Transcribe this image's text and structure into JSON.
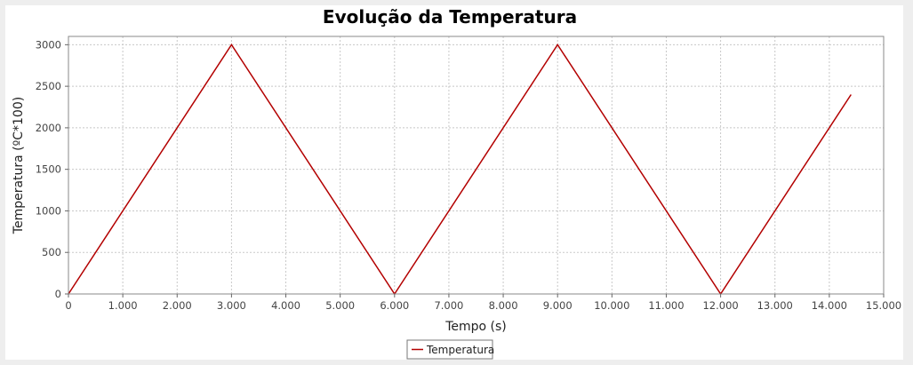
{
  "chart_data": {
    "type": "line",
    "title": "Evolução da Temperatura",
    "xlabel": "Tempo (s)",
    "ylabel": "Temperatura (ºC*100)",
    "xlim": [
      0,
      15000
    ],
    "ylim": [
      0,
      3100
    ],
    "x_ticks": [
      0,
      1000,
      2000,
      3000,
      4000,
      5000,
      6000,
      7000,
      8000,
      9000,
      10000,
      11000,
      12000,
      13000,
      14000,
      15000
    ],
    "x_tick_labels": [
      "0",
      "1.000",
      "2.000",
      "3.000",
      "4.000",
      "5.000",
      "6.000",
      "7.000",
      "8.000",
      "9.000",
      "10.000",
      "11.000",
      "12.000",
      "13.000",
      "14.000",
      "15.000"
    ],
    "y_ticks": [
      0,
      500,
      1000,
      1500,
      2000,
      2500,
      3000
    ],
    "y_tick_labels": [
      "0",
      "500",
      "1000",
      "1500",
      "2000",
      "2500",
      "3000"
    ],
    "grid": true,
    "legend_position": "bottom-center",
    "series": [
      {
        "name": "Temperatura",
        "color": "#b30000",
        "x": [
          0,
          3000,
          6000,
          9000,
          12000,
          14400
        ],
        "y": [
          0,
          3000,
          0,
          3000,
          0,
          2400
        ]
      }
    ]
  }
}
